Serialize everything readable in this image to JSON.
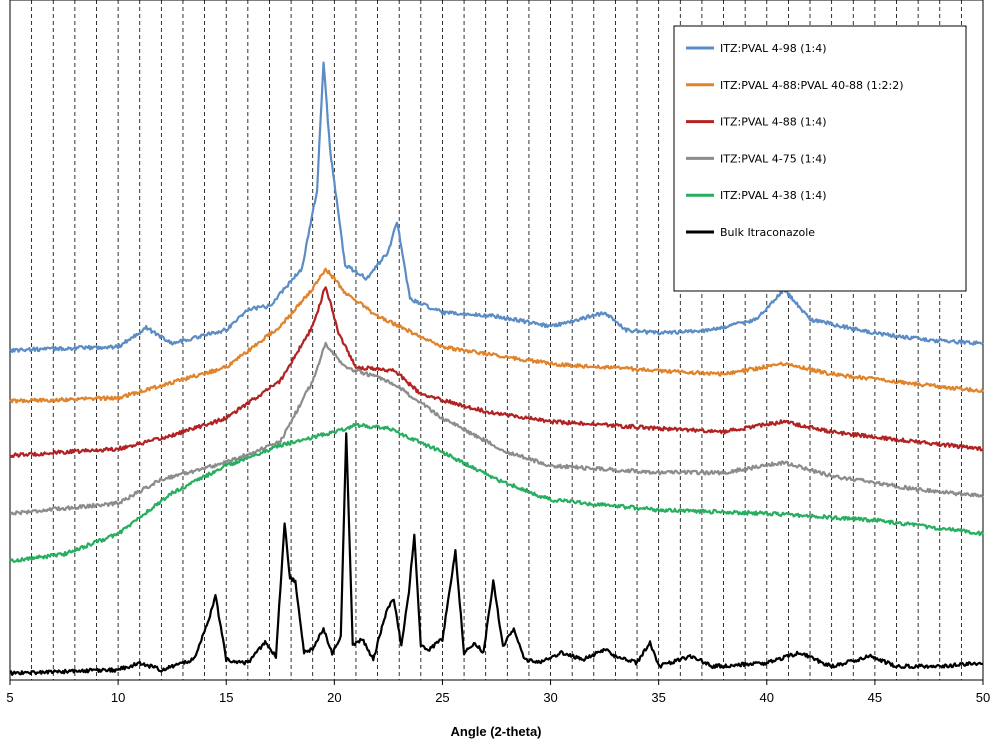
{
  "chart_data": {
    "type": "line",
    "title": "",
    "xlabel": "Angle (2-theta)",
    "ylabel": "",
    "xlim": [
      5,
      50
    ],
    "ylim": [
      0,
      100
    ],
    "grid": "vertical dashed every 1 degree",
    "legend_position": "top-right",
    "x_ticks": [
      "5",
      "10",
      "15",
      "20",
      "25",
      "30",
      "35",
      "40",
      "45",
      "50"
    ],
    "series": [
      {
        "name": "ITZ:PVAL 4-98 (1:4)",
        "color": "#5B8DC4",
        "x": [
          5,
          10,
          11.3,
          12.5,
          15,
          16,
          17,
          18.5,
          19.2,
          19.5,
          19.8,
          20.5,
          21.5,
          22.5,
          22.9,
          23.5,
          25,
          27.5,
          30,
          32.5,
          33.5,
          35,
          37.5,
          39.5,
          40.8,
          42,
          45,
          47.5,
          50
        ],
        "y": [
          48.5,
          49.0,
          51.8,
          49.5,
          51.5,
          54.5,
          55.0,
          60.5,
          72.0,
          91.0,
          78.0,
          61.0,
          59.0,
          63.0,
          67.5,
          56.0,
          54.0,
          53.5,
          52.0,
          54.0,
          51.5,
          51.0,
          51.5,
          53.0,
          57.5,
          53.0,
          51.0,
          50.0,
          49.5
        ]
      },
      {
        "name": "ITZ:PVAL 4-88:PVAL 40-88 (1:2:2)",
        "color": "#E0832A",
        "x": [
          5,
          10,
          15,
          17.5,
          19.0,
          19.6,
          20.5,
          22,
          25,
          30,
          35,
          38,
          40.8,
          43,
          47,
          50
        ],
        "y": [
          41.0,
          41.5,
          46.0,
          52.0,
          57.5,
          60.5,
          57.0,
          53.5,
          49.0,
          46.5,
          45.5,
          45.0,
          46.5,
          45.0,
          43.5,
          42.5
        ]
      },
      {
        "name": "ITZ:PVAL 4-88 (1:4)",
        "color": "#B22222",
        "x": [
          5,
          10,
          12,
          15,
          17.5,
          19.0,
          19.6,
          20.2,
          21,
          22.8,
          24,
          27,
          30,
          35,
          38,
          40.8,
          43,
          47,
          50
        ],
        "y": [
          33.0,
          34.0,
          35.5,
          38.5,
          44.0,
          52.0,
          58.0,
          51.0,
          46.0,
          45.5,
          42.0,
          39.5,
          38.0,
          37.0,
          36.5,
          38.0,
          36.5,
          35.0,
          34.0
        ]
      },
      {
        "name": "ITZ:PVAL 4-75 (1:4)",
        "color": "#8C8C8C",
        "x": [
          5,
          10,
          12,
          15,
          17.5,
          19.0,
          19.6,
          20.5,
          22,
          23,
          25,
          28,
          30,
          35,
          38,
          40.8,
          43,
          47,
          50
        ],
        "y": [
          24.5,
          26.0,
          29.5,
          32.0,
          35.0,
          44.0,
          49.5,
          46.0,
          44.5,
          43.0,
          38.5,
          33.5,
          31.5,
          30.5,
          30.5,
          32.0,
          30.0,
          28.0,
          27.0
        ]
      },
      {
        "name": "ITZ:PVAL 4-38 (1:4)",
        "color": "#27AE60",
        "x": [
          5,
          7.5,
          10,
          12.5,
          15,
          17.5,
          20,
          21,
          22.5,
          25,
          27.5,
          30,
          35,
          40,
          45,
          50
        ],
        "y": [
          17.5,
          18.5,
          21.5,
          27.5,
          31.5,
          34.5,
          36.5,
          37.5,
          37.0,
          33.5,
          29.5,
          26.5,
          25.0,
          24.5,
          23.5,
          21.5
        ]
      },
      {
        "name": "Bulk Itraconazole",
        "color": "#000000",
        "x": [
          5,
          10,
          11,
          12,
          13.5,
          14.2,
          14.5,
          15.0,
          16,
          16.8,
          17.3,
          17.7,
          17.95,
          18.2,
          18.6,
          19.0,
          19.5,
          19.9,
          20.3,
          20.55,
          20.85,
          21.3,
          21.8,
          22.4,
          22.75,
          23.1,
          23.45,
          23.7,
          24.0,
          24.4,
          25.0,
          25.6,
          26.0,
          26.5,
          26.9,
          27.35,
          27.8,
          28.3,
          28.8,
          29.5,
          30.5,
          31.5,
          32.5,
          33.0,
          34.0,
          34.6,
          35.0,
          36.5,
          37.5,
          40,
          41.5,
          43,
          44.8,
          46,
          48,
          50
        ],
        "y": [
          1.0,
          1.5,
          2.5,
          1.5,
          3.0,
          9.0,
          12.5,
          3.0,
          2.5,
          5.5,
          3.5,
          23.0,
          15.0,
          14.5,
          4.0,
          4.5,
          7.5,
          4.0,
          6.5,
          36.5,
          5.0,
          6.0,
          3.0,
          10.0,
          12.0,
          5.0,
          13.0,
          21.5,
          5.0,
          4.5,
          6.0,
          19.0,
          4.0,
          5.5,
          4.0,
          14.5,
          5.0,
          7.5,
          3.0,
          2.5,
          4.0,
          3.0,
          4.5,
          3.5,
          2.5,
          5.5,
          2.0,
          3.5,
          2.0,
          2.5,
          4.0,
          2.0,
          3.5,
          2.0,
          2.0,
          2.5
        ]
      }
    ]
  }
}
